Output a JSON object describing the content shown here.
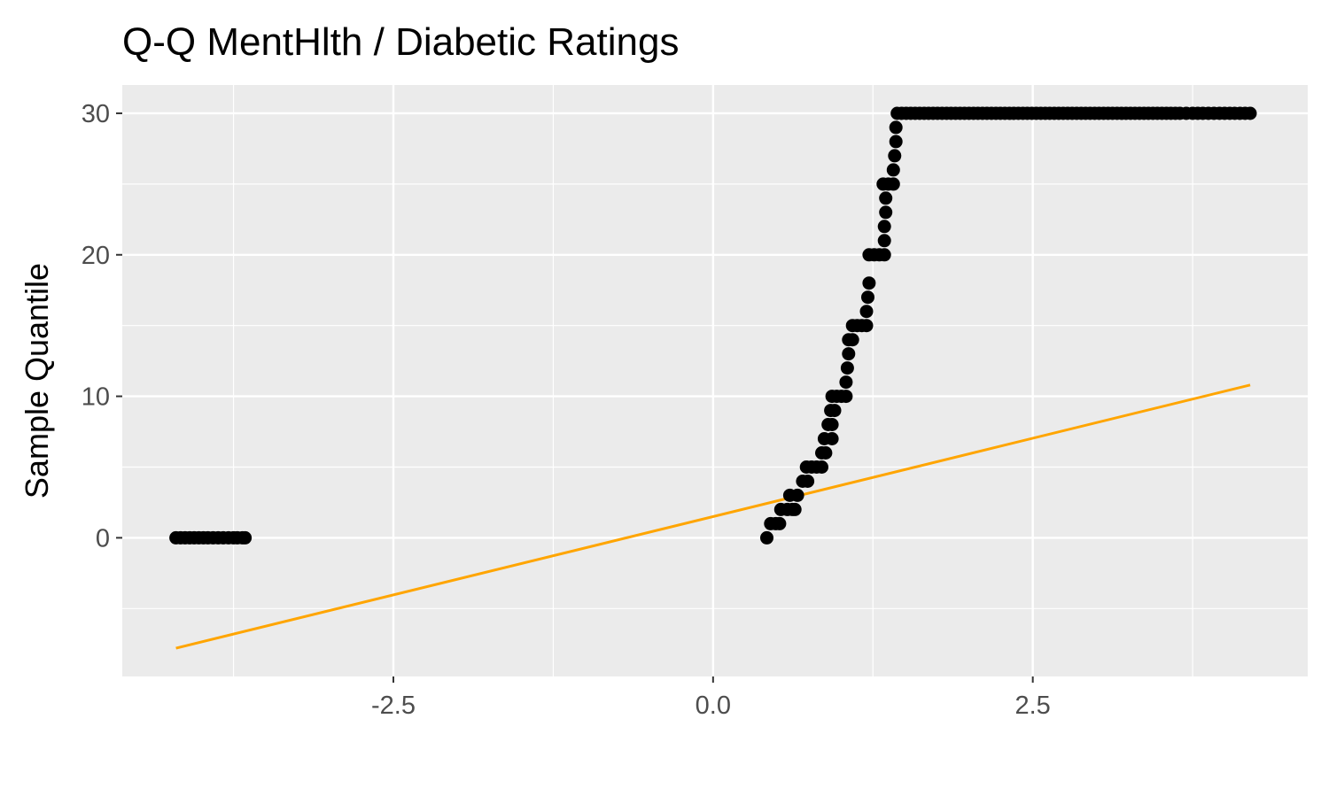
{
  "chart_data": {
    "type": "scatter",
    "title": "Q-Q MentHlth / Diabetic Ratings",
    "xlabel": "",
    "ylabel": "Sample Quantile",
    "xlim": [
      -4.62,
      4.65
    ],
    "ylim": [
      -9.8,
      32.0
    ],
    "x_ticks": [
      -2.5,
      0.0,
      2.5
    ],
    "x_tick_labels": [
      "-2.5",
      "0.0",
      "2.5"
    ],
    "y_ticks": [
      0,
      10,
      20,
      30
    ],
    "y_tick_labels": [
      "0",
      "10",
      "20",
      "30"
    ],
    "grid": true,
    "legend": "none",
    "colors": {
      "panel_background": "#ebebeb",
      "grid": "#ffffff",
      "points": "#000000",
      "reference_line": "#ffa500"
    },
    "series": [
      {
        "type": "scatter",
        "points": [
          [
            -4.2,
            0
          ],
          [
            -3.95,
            0
          ],
          [
            -3.83,
            0
          ],
          [
            -3.75,
            0
          ],
          [
            -3.72,
            0
          ],
          [
            -3.68,
            0
          ],
          [
            -3.66,
            0
          ],
          [
            0.42,
            0
          ],
          [
            0.45,
            1
          ],
          [
            0.49,
            1
          ],
          [
            0.52,
            1
          ],
          [
            0.53,
            2
          ],
          [
            0.58,
            2
          ],
          [
            0.62,
            2
          ],
          [
            0.64,
            2
          ],
          [
            0.6,
            3
          ],
          [
            0.66,
            3
          ],
          [
            0.7,
            4
          ],
          [
            0.74,
            4
          ],
          [
            0.73,
            5
          ],
          [
            0.85,
            5
          ],
          [
            0.85,
            6
          ],
          [
            0.88,
            6
          ],
          [
            0.87,
            7
          ],
          [
            0.93,
            7
          ],
          [
            0.9,
            8
          ],
          [
            0.93,
            8
          ],
          [
            0.92,
            9
          ],
          [
            0.95,
            9
          ],
          [
            0.93,
            10
          ],
          [
            1.04,
            10
          ],
          [
            1.04,
            11
          ],
          [
            1.05,
            12
          ],
          [
            1.06,
            13
          ],
          [
            1.06,
            14
          ],
          [
            1.09,
            14
          ],
          [
            1.09,
            15
          ],
          [
            1.2,
            15
          ],
          [
            1.2,
            16
          ],
          [
            1.21,
            17
          ],
          [
            1.22,
            18
          ],
          [
            1.22,
            20
          ],
          [
            1.34,
            20
          ],
          [
            1.34,
            21
          ],
          [
            1.34,
            22
          ],
          [
            1.35,
            23
          ],
          [
            1.35,
            24
          ],
          [
            1.33,
            25
          ],
          [
            1.41,
            25
          ],
          [
            1.41,
            26
          ],
          [
            1.42,
            27
          ],
          [
            1.43,
            28
          ],
          [
            1.43,
            29
          ],
          [
            1.44,
            30
          ],
          [
            3.65,
            30
          ],
          [
            3.75,
            30
          ],
          [
            3.83,
            30
          ],
          [
            3.96,
            30
          ],
          [
            4.2,
            30
          ]
        ]
      },
      {
        "type": "line",
        "points": [
          [
            -4.2,
            -7.8
          ],
          [
            4.2,
            10.8
          ]
        ]
      }
    ]
  }
}
